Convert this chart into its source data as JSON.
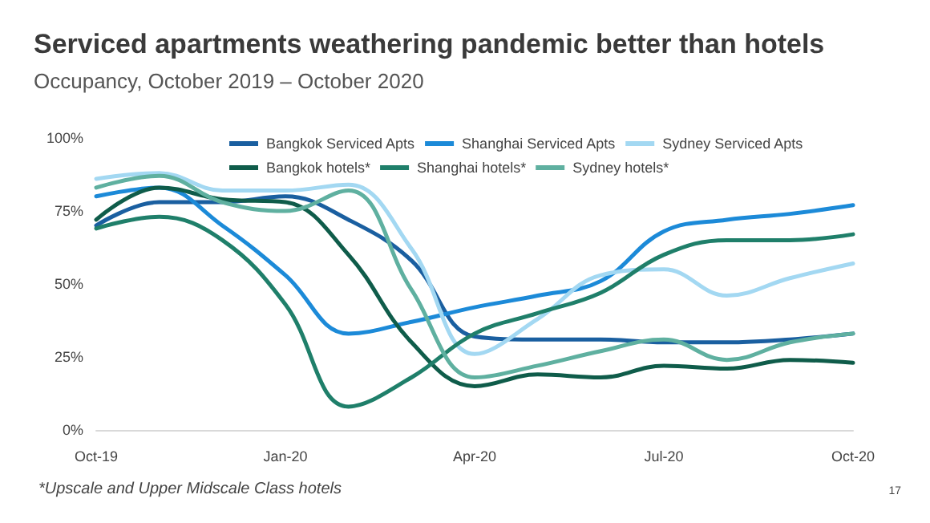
{
  "chart_data": {
    "type": "line",
    "title": "Serviced apartments weathering pandemic better than hotels",
    "subtitle": "Occupancy, October 2019 – October 2020",
    "categories": [
      "Oct-19",
      null,
      null,
      "Jan-20",
      null,
      null,
      "Apr-20",
      null,
      null,
      "Jul-20",
      null,
      null,
      "Oct-20"
    ],
    "series": [
      {
        "name": "Bangkok Serviced Apts",
        "color": "#1a5fa0",
        "values": [
          70,
          78,
          78,
          80,
          72,
          58,
          32,
          31,
          31,
          30,
          30,
          31,
          33
        ]
      },
      {
        "name": "Shanghai Serviced Apts",
        "color": "#1c8ad8",
        "values": [
          80,
          83,
          70,
          53,
          33,
          37,
          42,
          46,
          51,
          68,
          72,
          74,
          77
        ]
      },
      {
        "name": "Sydney Serviced Apts",
        "color": "#a3d8f2",
        "values": [
          86,
          88,
          82,
          82,
          84,
          62,
          26,
          38,
          53,
          55,
          46,
          52,
          57
        ]
      },
      {
        "name": "Bangkok hotels*",
        "color": "#0f5c4a",
        "values": [
          72,
          83,
          79,
          78,
          60,
          30,
          15,
          19,
          18,
          22,
          21,
          24,
          23
        ]
      },
      {
        "name": "Shanghai hotels*",
        "color": "#1f7f6a",
        "values": [
          69,
          73,
          65,
          43,
          8,
          18,
          33,
          40,
          47,
          60,
          65,
          65,
          67
        ]
      },
      {
        "name": "Sydney hotels*",
        "color": "#5fb0a0",
        "values": [
          83,
          87,
          78,
          75,
          82,
          48,
          18,
          22,
          27,
          31,
          24,
          30,
          33
        ]
      }
    ],
    "ylim": [
      0,
      100
    ],
    "yticks": [
      {
        "value": 0,
        "label": "0%"
      },
      {
        "value": 25,
        "label": "25%"
      },
      {
        "value": 50,
        "label": "50%"
      },
      {
        "value": 75,
        "label": "75%"
      },
      {
        "value": 100,
        "label": "100%"
      }
    ],
    "grid": false,
    "legend": "top",
    "marker": "none",
    "line_style": "solid",
    "annotations": [
      "*Upscale and Upper Midscale Class hotels",
      "17"
    ]
  }
}
